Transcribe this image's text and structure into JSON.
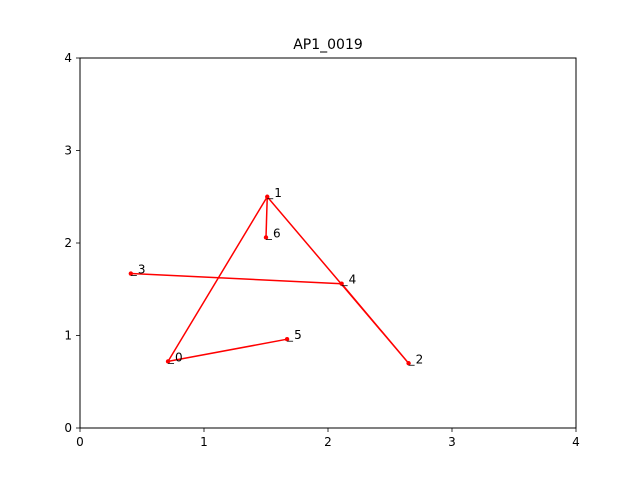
{
  "chart_data": {
    "type": "line",
    "title": "AP1_0019",
    "xlabel": "",
    "ylabel": "",
    "xlim": [
      0,
      4
    ],
    "ylim": [
      0,
      4
    ],
    "xticks": [
      0,
      1,
      2,
      3,
      4
    ],
    "yticks": [
      0,
      1,
      2,
      3,
      4
    ],
    "xtick_labels": [
      "0",
      "1",
      "2",
      "3",
      "4"
    ],
    "ytick_labels": [
      "0",
      "1",
      "2",
      "3",
      "4"
    ],
    "grid": false,
    "color": "#ff0000",
    "points": [
      {
        "label": "0",
        "x": 0.71,
        "y": 0.72
      },
      {
        "label": "1",
        "x": 1.51,
        "y": 2.5
      },
      {
        "label": "2",
        "x": 2.65,
        "y": 0.7
      },
      {
        "label": "3",
        "x": 0.41,
        "y": 1.67
      },
      {
        "label": "4",
        "x": 2.11,
        "y": 1.56
      },
      {
        "label": "5",
        "x": 1.67,
        "y": 0.96
      },
      {
        "label": "6",
        "x": 1.5,
        "y": 2.06
      }
    ],
    "path_order": [
      "0",
      "1",
      "2",
      "4",
      "3"
    ],
    "segments": [
      [
        "5",
        "0"
      ],
      [
        "1",
        "6"
      ]
    ]
  }
}
